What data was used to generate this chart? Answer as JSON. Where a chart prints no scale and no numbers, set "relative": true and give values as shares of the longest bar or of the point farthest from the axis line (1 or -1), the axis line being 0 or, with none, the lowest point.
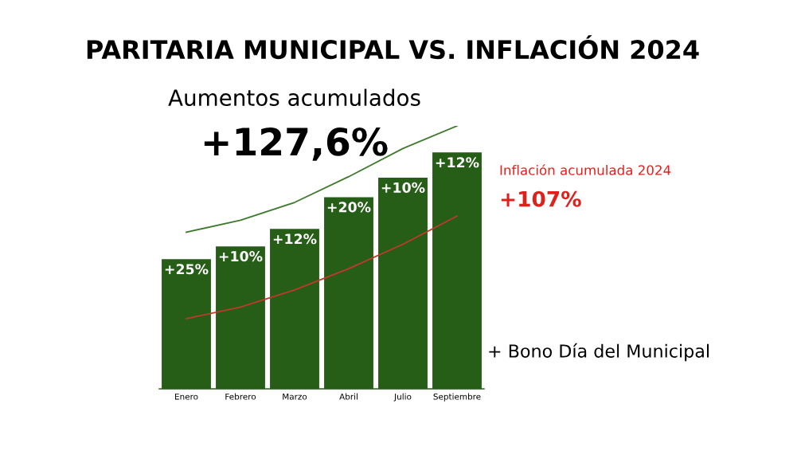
{
  "chart_data": {
    "type": "bar",
    "title": "PARITARIA MUNICIPAL VS. INFLACIÓN 2024",
    "relative": true,
    "categories": [
      "Enero",
      "Febrero",
      "Marzo",
      "Abril",
      "Julio",
      "Septiembre"
    ],
    "series": [
      {
        "color": "#265e17",
        "values": [
          0.493,
          0.542,
          0.608,
          0.729,
          0.803,
          0.899
        ]
      },
      {
        "type": "line",
        "color": "#c0392b",
        "values": [
          0.267,
          0.311,
          0.376,
          0.457,
          0.55,
          0.657
        ]
      },
      {
        "type": "line",
        "color": "#3f7a2e",
        "values": [
          0.596,
          0.641,
          0.709,
          0.807,
          0.914,
          1.0
        ]
      }
    ],
    "annotations": [
      "Aumentos acumulados",
      "+127,6%",
      "Inflación acumulada 2024",
      "+107%",
      "+ Bono Día del Municipal",
      {
        "text": "+25%",
        "x": "Enero",
        "y": 0.493
      },
      {
        "text": "+10%",
        "x": "Febrero",
        "y": 0.542
      },
      {
        "text": "+12%",
        "x": "Marzo",
        "y": 0.608
      },
      {
        "text": "+20%",
        "x": "Abril",
        "y": 0.729
      },
      {
        "text": "+10%",
        "x": "Julio",
        "y": 0.803
      },
      {
        "text": "+12%",
        "x": "Septiembre",
        "y": 0.899
      }
    ],
    "grid": false,
    "legend": false
  }
}
